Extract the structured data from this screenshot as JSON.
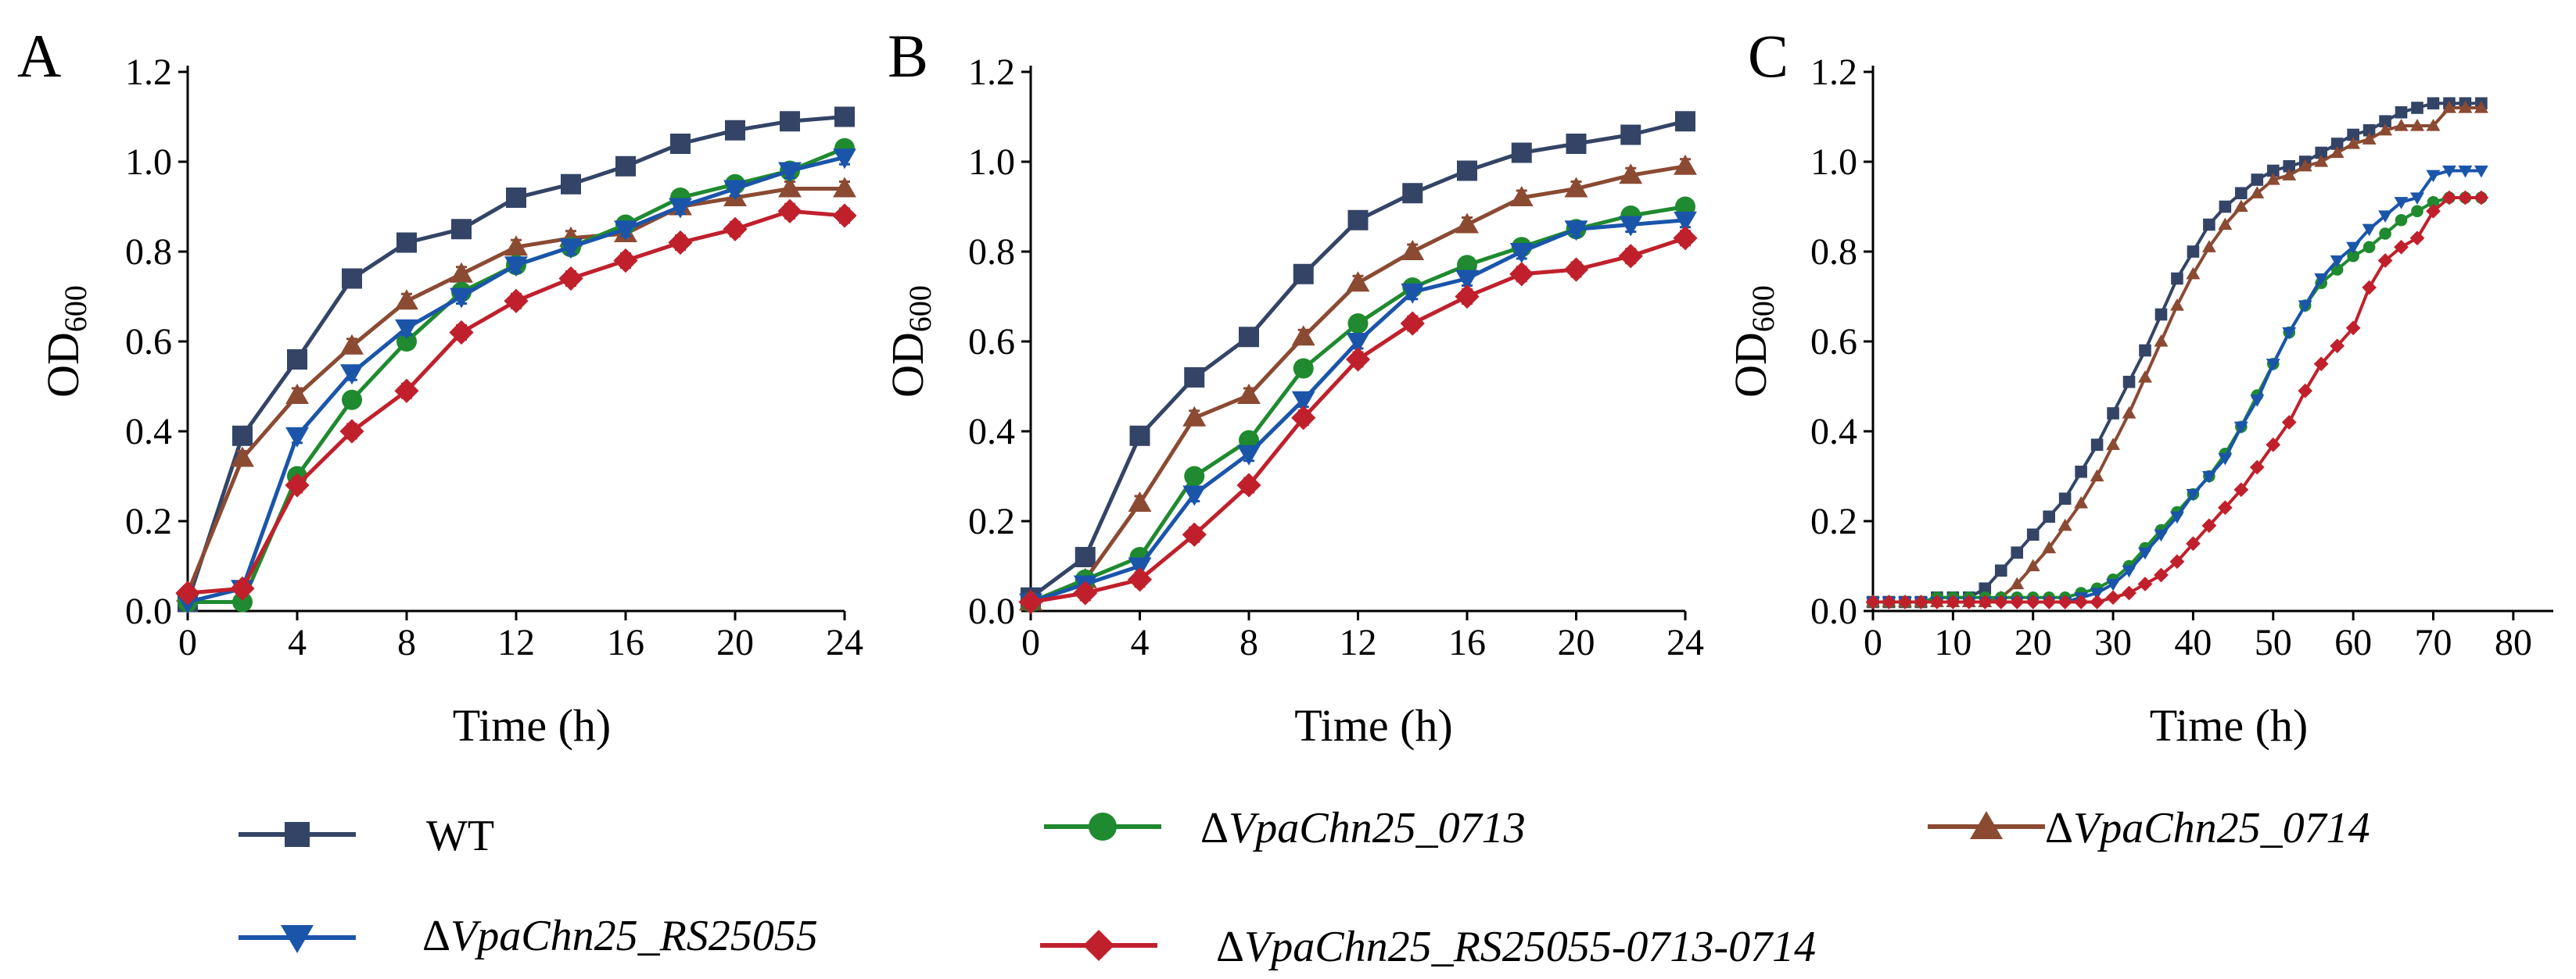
{
  "colors": {
    "WT": "#334466",
    "RS25055": "#1a55aa",
    "0713": "#1f8a2f",
    "0714": "#8b4a32",
    "triple": "#c0202c"
  },
  "legend": [
    {
      "key": "WT",
      "prefix": "",
      "label": "WT",
      "marker": "square"
    },
    {
      "key": "0713",
      "prefix": "Δ",
      "label": "VpaChn25_0713",
      "marker": "circle"
    },
    {
      "key": "0714",
      "prefix": "Δ",
      "label": "VpaChn25_0714",
      "marker": "triangle-up"
    },
    {
      "key": "RS25055",
      "prefix": "Δ",
      "label": "VpaChn25_RS25055",
      "marker": "triangle-down"
    },
    {
      "key": "triple",
      "prefix": "Δ",
      "label": "VpaChn25_RS25055-0713-0714",
      "marker": "diamond"
    }
  ],
  "chart_data": [
    {
      "type": "line",
      "panel_label": "A",
      "xlabel": "Time (h)",
      "ylabel": "OD",
      "ylabel_sub": "600",
      "xlim": [
        0,
        24
      ],
      "ylim": [
        0,
        1.2
      ],
      "xticks": [
        0,
        4,
        8,
        12,
        16,
        20,
        24
      ],
      "yticks": [
        "0.0",
        "0.2",
        "0.4",
        "0.6",
        "0.8",
        "1.0",
        "1.2"
      ],
      "x": [
        0,
        2,
        4,
        6,
        8,
        10,
        12,
        14,
        16,
        18,
        20,
        22,
        24
      ],
      "series": [
        {
          "key": "WT",
          "values": [
            0.02,
            0.39,
            0.56,
            0.74,
            0.82,
            0.85,
            0.92,
            0.95,
            0.99,
            1.04,
            1.07,
            1.09,
            1.1
          ]
        },
        {
          "key": "0714",
          "values": [
            0.04,
            0.34,
            0.48,
            0.59,
            0.69,
            0.75,
            0.81,
            0.83,
            0.84,
            0.9,
            0.92,
            0.94,
            0.94
          ]
        },
        {
          "key": "0713",
          "values": [
            0.02,
            0.02,
            0.3,
            0.47,
            0.6,
            0.71,
            0.77,
            0.81,
            0.86,
            0.92,
            0.95,
            0.98,
            1.03
          ]
        },
        {
          "key": "RS25055",
          "values": [
            0.02,
            0.05,
            0.39,
            0.53,
            0.63,
            0.7,
            0.77,
            0.81,
            0.85,
            0.9,
            0.94,
            0.98,
            1.01
          ]
        },
        {
          "key": "triple",
          "values": [
            0.04,
            0.05,
            0.28,
            0.4,
            0.49,
            0.62,
            0.69,
            0.74,
            0.78,
            0.82,
            0.85,
            0.89,
            0.88
          ]
        }
      ]
    },
    {
      "type": "line",
      "panel_label": "B",
      "xlabel": "Time (h)",
      "ylabel": "OD",
      "ylabel_sub": "600",
      "xlim": [
        0,
        24
      ],
      "ylim": [
        0,
        1.2
      ],
      "xticks": [
        0,
        4,
        8,
        12,
        16,
        20,
        24
      ],
      "yticks": [
        "0.0",
        "0.2",
        "0.4",
        "0.6",
        "0.8",
        "1.0",
        "1.2"
      ],
      "x": [
        0,
        2,
        4,
        6,
        8,
        10,
        12,
        14,
        16,
        18,
        20,
        22,
        24
      ],
      "series": [
        {
          "key": "WT",
          "values": [
            0.03,
            0.12,
            0.39,
            0.52,
            0.61,
            0.75,
            0.87,
            0.93,
            0.98,
            1.02,
            1.04,
            1.06,
            1.09
          ]
        },
        {
          "key": "0714",
          "values": [
            0.02,
            0.07,
            0.24,
            0.43,
            0.48,
            0.61,
            0.73,
            0.8,
            0.86,
            0.92,
            0.94,
            0.97,
            0.99
          ]
        },
        {
          "key": "0713",
          "values": [
            0.02,
            0.07,
            0.12,
            0.3,
            0.38,
            0.54,
            0.64,
            0.72,
            0.77,
            0.81,
            0.85,
            0.88,
            0.9
          ]
        },
        {
          "key": "RS25055",
          "values": [
            0.02,
            0.06,
            0.1,
            0.26,
            0.35,
            0.47,
            0.6,
            0.71,
            0.74,
            0.8,
            0.85,
            0.86,
            0.87
          ]
        },
        {
          "key": "triple",
          "values": [
            0.02,
            0.04,
            0.07,
            0.17,
            0.28,
            0.43,
            0.56,
            0.64,
            0.7,
            0.75,
            0.76,
            0.79,
            0.83
          ]
        }
      ]
    },
    {
      "type": "line",
      "panel_label": "C",
      "xlabel": "Time (h)",
      "ylabel": "OD",
      "ylabel_sub": "600",
      "xlim": [
        0,
        85
      ],
      "ylim": [
        0,
        1.2
      ],
      "xticks": [
        0,
        10,
        20,
        30,
        40,
        50,
        60,
        70,
        80
      ],
      "yticks": [
        "0.0",
        "0.2",
        "0.4",
        "0.6",
        "0.8",
        "1.0",
        "1.2"
      ],
      "x": [
        0,
        2,
        4,
        6,
        8,
        10,
        12,
        14,
        16,
        18,
        20,
        22,
        24,
        26,
        28,
        30,
        32,
        34,
        36,
        38,
        40,
        42,
        44,
        46,
        48,
        50,
        52,
        54,
        56,
        58,
        60,
        62,
        64,
        66,
        68,
        70,
        72,
        74,
        76
      ],
      "series": [
        {
          "key": "WT",
          "values": [
            0.02,
            0.02,
            0.02,
            0.02,
            0.03,
            0.03,
            0.03,
            0.05,
            0.09,
            0.13,
            0.17,
            0.21,
            0.25,
            0.31,
            0.37,
            0.44,
            0.51,
            0.58,
            0.66,
            0.74,
            0.8,
            0.86,
            0.9,
            0.93,
            0.96,
            0.98,
            0.99,
            1.0,
            1.02,
            1.04,
            1.06,
            1.07,
            1.09,
            1.11,
            1.12,
            1.13,
            1.13,
            1.13,
            1.13
          ]
        },
        {
          "key": "0714",
          "values": [
            0.02,
            0.02,
            0.02,
            0.02,
            0.02,
            0.02,
            0.02,
            0.02,
            0.03,
            0.06,
            0.1,
            0.14,
            0.19,
            0.24,
            0.3,
            0.37,
            0.44,
            0.52,
            0.6,
            0.68,
            0.75,
            0.81,
            0.86,
            0.9,
            0.93,
            0.96,
            0.97,
            0.99,
            1.0,
            1.02,
            1.04,
            1.05,
            1.07,
            1.08,
            1.08,
            1.08,
            1.12,
            1.12,
            1.12
          ]
        },
        {
          "key": "0713",
          "values": [
            0.02,
            0.02,
            0.02,
            0.02,
            0.03,
            0.03,
            0.03,
            0.03,
            0.03,
            0.03,
            0.03,
            0.03,
            0.03,
            0.04,
            0.05,
            0.07,
            0.1,
            0.14,
            0.18,
            0.22,
            0.26,
            0.3,
            0.35,
            0.41,
            0.48,
            0.55,
            0.62,
            0.68,
            0.73,
            0.76,
            0.79,
            0.81,
            0.84,
            0.87,
            0.89,
            0.91,
            0.92,
            0.92,
            0.92
          ]
        },
        {
          "key": "RS25055",
          "values": [
            0.02,
            0.02,
            0.02,
            0.02,
            0.02,
            0.02,
            0.02,
            0.02,
            0.02,
            0.02,
            0.02,
            0.02,
            0.02,
            0.03,
            0.04,
            0.06,
            0.09,
            0.13,
            0.17,
            0.21,
            0.26,
            0.3,
            0.34,
            0.41,
            0.47,
            0.55,
            0.62,
            0.68,
            0.74,
            0.78,
            0.81,
            0.85,
            0.88,
            0.91,
            0.92,
            0.97,
            0.98,
            0.98,
            0.98
          ]
        },
        {
          "key": "triple",
          "values": [
            0.02,
            0.02,
            0.02,
            0.02,
            0.02,
            0.02,
            0.02,
            0.02,
            0.02,
            0.02,
            0.02,
            0.02,
            0.02,
            0.02,
            0.02,
            0.03,
            0.04,
            0.06,
            0.08,
            0.11,
            0.15,
            0.19,
            0.23,
            0.27,
            0.32,
            0.37,
            0.42,
            0.49,
            0.55,
            0.59,
            0.63,
            0.72,
            0.78,
            0.81,
            0.83,
            0.89,
            0.92,
            0.92,
            0.92
          ]
        }
      ]
    }
  ]
}
